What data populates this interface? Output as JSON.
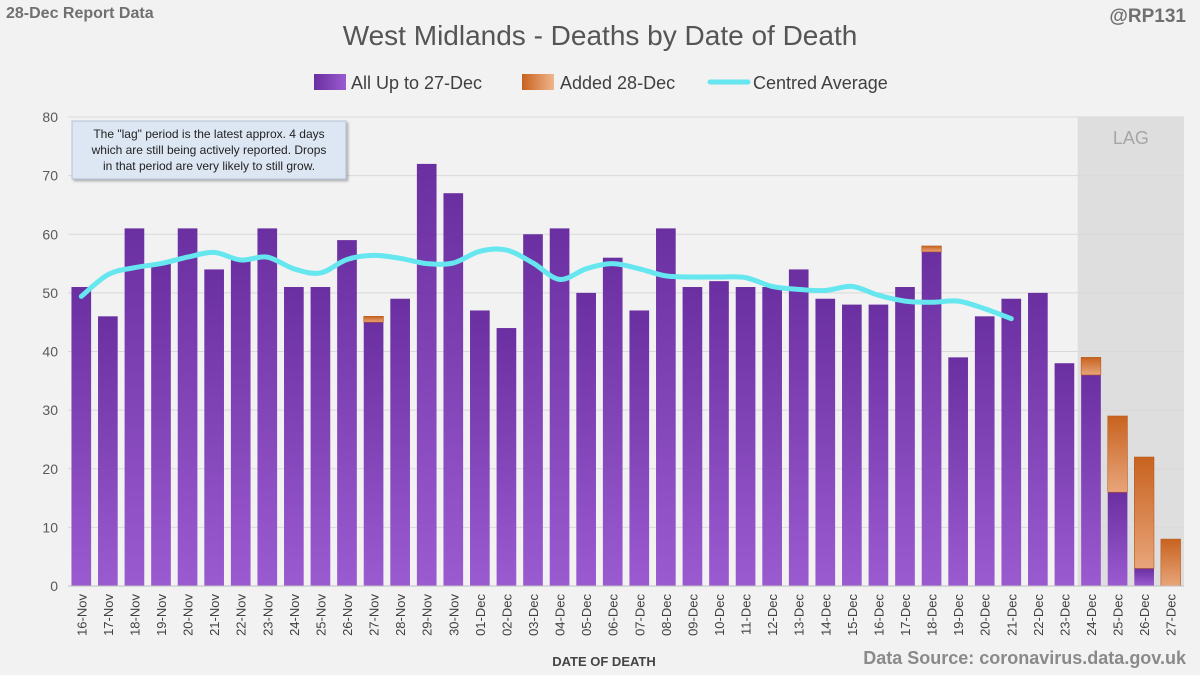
{
  "header": {
    "report_label": "28-Dec Report Data",
    "handle": "@RP131"
  },
  "footer": {
    "source": "Data Source: coronavirus.data.gov.uk"
  },
  "annotation": {
    "lines": [
      "The \"lag\" period is the latest approx. 4 days",
      "which are still being actively reported.  Drops",
      "in that period are very likely to still grow."
    ]
  },
  "lag_label": "LAG",
  "colors": {
    "bar_primary": "#7030a0",
    "bar_added": "#d86e2a",
    "average_line": "#66e6ee",
    "lag_shade": "#dedede"
  },
  "chart_data": {
    "type": "bar",
    "title": "West Midlands - Deaths by Date of Death",
    "xlabel": "DATE OF DEATH",
    "ylabel": "",
    "ylim": [
      0,
      80
    ],
    "yticks": [
      0,
      10,
      20,
      30,
      40,
      50,
      60,
      70,
      80
    ],
    "grid": true,
    "legend_position": "top",
    "stacked": true,
    "categories": [
      "16-Nov",
      "17-Nov",
      "18-Nov",
      "19-Nov",
      "20-Nov",
      "21-Nov",
      "22-Nov",
      "23-Nov",
      "24-Nov",
      "25-Nov",
      "26-Nov",
      "27-Nov",
      "28-Nov",
      "29-Nov",
      "30-Nov",
      "01-Dec",
      "02-Dec",
      "03-Dec",
      "04-Dec",
      "05-Dec",
      "06-Dec",
      "07-Dec",
      "08-Dec",
      "09-Dec",
      "10-Dec",
      "11-Dec",
      "12-Dec",
      "13-Dec",
      "14-Dec",
      "15-Dec",
      "16-Dec",
      "17-Dec",
      "18-Dec",
      "19-Dec",
      "20-Dec",
      "21-Dec",
      "22-Dec",
      "23-Dec",
      "24-Dec",
      "25-Dec",
      "26-Dec",
      "27-Dec"
    ],
    "lag_categories": [
      "24-Dec",
      "25-Dec",
      "26-Dec",
      "27-Dec"
    ],
    "series": [
      {
        "name": "All Up to 27-Dec",
        "type": "bar",
        "values": [
          51,
          46,
          61,
          55,
          61,
          54,
          56,
          61,
          51,
          51,
          59,
          45,
          49,
          72,
          67,
          47,
          44,
          60,
          61,
          50,
          56,
          47,
          61,
          51,
          52,
          51,
          51,
          54,
          49,
          48,
          48,
          51,
          57,
          39,
          46,
          49,
          50,
          38,
          36,
          16,
          3,
          0
        ]
      },
      {
        "name": "Added 28-Dec",
        "type": "bar",
        "values": [
          0,
          0,
          0,
          0,
          0,
          0,
          0,
          0,
          0,
          0,
          0,
          1,
          0,
          0,
          0,
          0,
          0,
          0,
          0,
          0,
          0,
          0,
          0,
          0,
          0,
          0,
          0,
          0,
          0,
          0,
          0,
          0,
          1,
          0,
          0,
          0,
          0,
          0,
          3,
          13,
          19,
          8
        ]
      },
      {
        "name": "Centred Average",
        "type": "line",
        "values": [
          49.4,
          53.1,
          54.3,
          55.0,
          56.1,
          56.9,
          55.6,
          56.1,
          54.1,
          53.4,
          55.7,
          56.4,
          55.9,
          55.0,
          55.1,
          57.1,
          57.3,
          55.1,
          52.3,
          54.1,
          55.0,
          54.1,
          52.9,
          52.7,
          52.7,
          52.6,
          51.1,
          50.6,
          50.4,
          51.1,
          49.6,
          48.6,
          48.4,
          48.6,
          47.3,
          45.6,
          null,
          null,
          null,
          null,
          null,
          null
        ]
      }
    ]
  }
}
